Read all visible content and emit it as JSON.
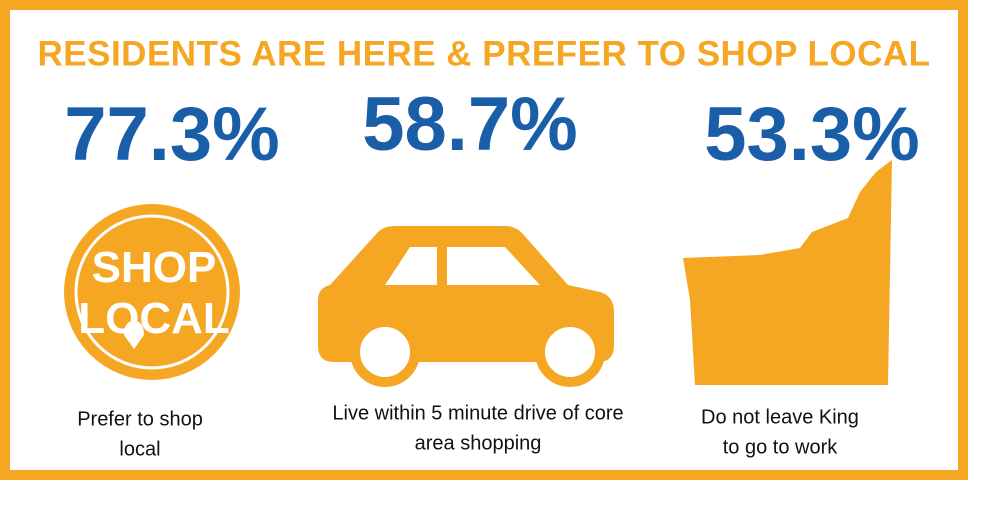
{
  "header": {
    "title": "RESIDENTS ARE HERE & PREFER TO SHOP LOCAL"
  },
  "stats": [
    {
      "figure": "77.3%",
      "icon_text": [
        "SHOP",
        "LOCAL"
      ],
      "description": [
        "Prefer to shop",
        "local"
      ]
    },
    {
      "figure": "58.7%",
      "description": [
        "Live within 5 minute drive of core",
        "area shopping"
      ]
    },
    {
      "figure": "53.3%",
      "description": [
        "Do not leave King",
        "to go to work"
      ]
    }
  ]
}
